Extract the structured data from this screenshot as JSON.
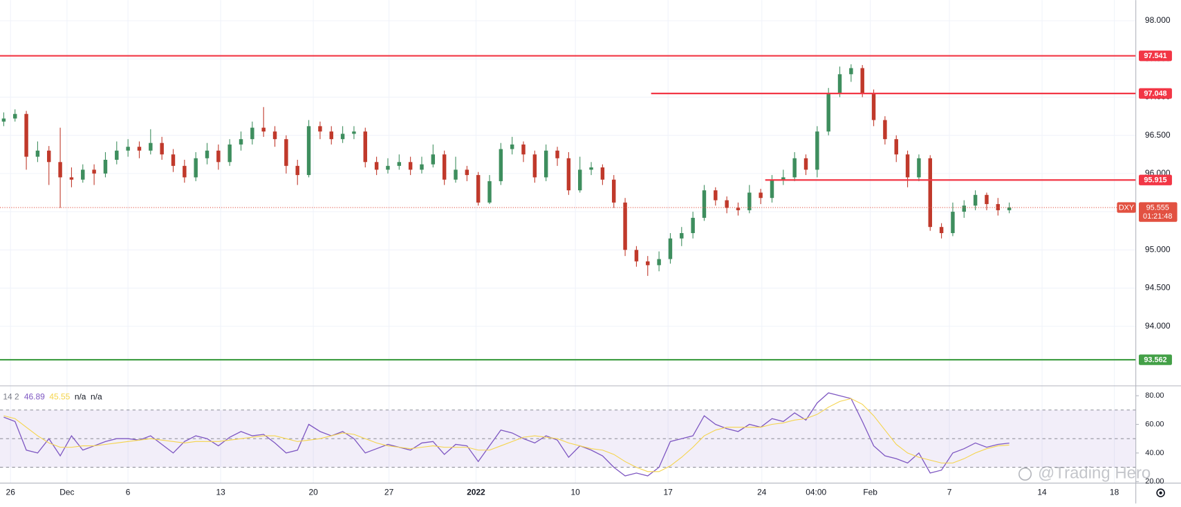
{
  "chart_data": [
    {
      "type": "candlestick",
      "symbol": "DXY",
      "up_color": "#3e8e5e",
      "down_color": "#c0392b",
      "grid": true,
      "xlim": [
        -0.33,
        100.2
      ],
      "ylim": [
        93.22,
        98.27
      ],
      "xticks": [
        {
          "value": 0.6,
          "label": "26"
        },
        {
          "value": 5.6,
          "label": "Dec"
        },
        {
          "value": 11,
          "label": "6"
        },
        {
          "value": 19.2,
          "label": "13"
        },
        {
          "value": 27.4,
          "label": "20"
        },
        {
          "value": 34.1,
          "label": "27"
        },
        {
          "value": 41.8,
          "label": "2022"
        },
        {
          "value": 50.6,
          "label": "10"
        },
        {
          "value": 58.8,
          "label": "17"
        },
        {
          "value": 67.1,
          "label": "24"
        },
        {
          "value": 71.9,
          "label": "04:00"
        },
        {
          "value": 76.7,
          "label": "Feb"
        },
        {
          "value": 83.7,
          "label": "7"
        },
        {
          "value": 91.9,
          "label": "14"
        },
        {
          "value": 98.3,
          "label": "18"
        }
      ],
      "yticks": [
        {
          "value": 94,
          "label": "94.000"
        },
        {
          "value": 94.5,
          "label": "94.500"
        },
        {
          "value": 95,
          "label": "95.000"
        },
        {
          "value": 95.5,
          "label": "95.500"
        },
        {
          "value": 96,
          "label": "96.000"
        },
        {
          "value": 96.5,
          "label": "96.500"
        },
        {
          "value": 97,
          "label": "97.000"
        },
        {
          "value": 97.5,
          "label": "97.500"
        },
        {
          "value": 98,
          "label": "98.000"
        }
      ],
      "levels": [
        {
          "value": 97.541,
          "label": "97.541",
          "color": "#f23645"
        },
        {
          "value": 97.048,
          "label": "97.048",
          "color": "#f23645",
          "start": 57.3
        },
        {
          "value": 95.915,
          "label": "95.915",
          "color": "#f23645",
          "start": 67.4
        },
        {
          "value": 93.562,
          "label": "93.562",
          "color": "#43a047"
        }
      ],
      "last": {
        "value": 95.555,
        "label": "95.555",
        "countdown": "01:21:48",
        "color": "#e25141"
      },
      "open": [
        96.68,
        96.72,
        96.78,
        96.22,
        96.3,
        96.15,
        95.95,
        95.92,
        96.05,
        96.0,
        96.18,
        96.3,
        96.35,
        96.3,
        96.4,
        96.25,
        96.1,
        95.95,
        96.2,
        96.3,
        96.15,
        96.38,
        96.45,
        96.6,
        96.55,
        96.45,
        96.1,
        95.98,
        96.62,
        96.55,
        96.45,
        96.52,
        96.55,
        96.15,
        96.05,
        96.1,
        96.15,
        96.05,
        96.12,
        96.25,
        95.92,
        96.05,
        95.98,
        95.62,
        95.9,
        96.32,
        96.38,
        96.25,
        95.95,
        96.3,
        96.2,
        95.78,
        96.05,
        96.08,
        95.92,
        95.62,
        95.0,
        94.85,
        94.8,
        94.88,
        95.15,
        95.22,
        95.42,
        95.78,
        95.65,
        95.55,
        95.52,
        95.75,
        95.68,
        95.92,
        95.95,
        96.2,
        96.05,
        96.55,
        97.05,
        97.3,
        97.38,
        97.05,
        96.7,
        96.45,
        96.25,
        95.95,
        96.2,
        95.3,
        95.22,
        95.5,
        95.58,
        95.72,
        95.6,
        95.52
      ],
      "high": [
        96.8,
        96.84,
        96.82,
        96.42,
        96.36,
        96.6,
        96.08,
        96.12,
        96.12,
        96.28,
        96.42,
        96.45,
        96.42,
        96.58,
        96.48,
        96.32,
        96.18,
        96.28,
        96.4,
        96.38,
        96.45,
        96.55,
        96.68,
        96.87,
        96.62,
        96.5,
        96.18,
        96.7,
        96.68,
        96.62,
        96.62,
        96.62,
        96.6,
        96.22,
        96.2,
        96.25,
        96.22,
        96.22,
        96.38,
        96.3,
        96.22,
        96.1,
        96.02,
        95.98,
        96.4,
        96.48,
        96.42,
        96.3,
        96.38,
        96.35,
        96.28,
        96.22,
        96.15,
        96.12,
        95.98,
        95.68,
        95.05,
        94.92,
        94.98,
        95.22,
        95.3,
        95.5,
        95.85,
        95.82,
        95.7,
        95.62,
        95.85,
        95.8,
        95.98,
        96.05,
        96.28,
        96.25,
        96.62,
        97.12,
        97.4,
        97.43,
        97.42,
        97.1,
        96.75,
        96.5,
        96.3,
        96.25,
        96.24,
        95.35,
        95.62,
        95.65,
        95.78,
        95.75,
        95.68,
        95.62
      ],
      "low": [
        96.62,
        96.68,
        96.05,
        96.15,
        95.85,
        95.55,
        95.82,
        95.88,
        95.85,
        95.95,
        96.12,
        96.22,
        96.2,
        96.25,
        96.18,
        96.02,
        95.88,
        95.9,
        96.12,
        96.05,
        96.1,
        96.3,
        96.38,
        96.48,
        96.35,
        96.0,
        95.85,
        95.95,
        96.45,
        96.38,
        96.4,
        96.45,
        96.08,
        95.98,
        96.0,
        96.05,
        95.98,
        96.0,
        96.08,
        95.85,
        95.88,
        95.9,
        95.58,
        95.6,
        95.85,
        96.25,
        96.15,
        95.88,
        95.9,
        96.1,
        95.72,
        95.75,
        95.98,
        95.85,
        95.55,
        94.92,
        94.78,
        94.66,
        94.72,
        94.82,
        95.05,
        95.15,
        95.38,
        95.58,
        95.48,
        95.45,
        95.48,
        95.6,
        95.62,
        95.85,
        95.9,
        95.98,
        95.95,
        96.5,
        97.0,
        97.2,
        97.0,
        96.62,
        96.38,
        96.15,
        95.82,
        95.9,
        95.25,
        95.15,
        95.18,
        95.42,
        95.52,
        95.52,
        95.45,
        95.48
      ],
      "close": [
        96.72,
        96.78,
        96.22,
        96.3,
        96.15,
        95.95,
        95.92,
        96.05,
        96.0,
        96.18,
        96.3,
        96.35,
        96.3,
        96.4,
        96.25,
        96.1,
        95.95,
        96.2,
        96.3,
        96.15,
        96.38,
        96.45,
        96.6,
        96.55,
        96.45,
        96.1,
        95.98,
        96.62,
        96.55,
        96.45,
        96.52,
        96.55,
        96.15,
        96.05,
        96.1,
        96.15,
        96.05,
        96.12,
        96.25,
        95.92,
        96.05,
        95.98,
        95.62,
        95.9,
        96.32,
        96.38,
        96.25,
        95.95,
        96.3,
        96.2,
        95.78,
        96.05,
        96.08,
        95.92,
        95.62,
        95.0,
        94.85,
        94.8,
        94.88,
        95.15,
        95.22,
        95.42,
        95.78,
        95.65,
        95.55,
        95.52,
        95.75,
        95.68,
        95.92,
        95.95,
        96.2,
        96.05,
        96.55,
        97.05,
        97.3,
        97.38,
        97.05,
        96.7,
        96.45,
        96.25,
        95.95,
        96.2,
        95.3,
        95.22,
        95.5,
        95.58,
        95.72,
        95.6,
        95.52,
        95.555
      ]
    },
    {
      "type": "line",
      "header": {
        "params": "14 2",
        "values": [
          "46.89",
          "45.55",
          "n/a",
          "n/a"
        ]
      },
      "ylim": [
        19.5,
        85.3
      ],
      "yticks": [
        {
          "value": 20,
          "label": "20.00"
        },
        {
          "value": 40,
          "label": "40.00"
        },
        {
          "value": 60,
          "label": "60.00"
        },
        {
          "value": 80,
          "label": "80.00"
        }
      ],
      "levels": [
        70,
        50,
        30
      ],
      "band": [
        70,
        30
      ],
      "band_color": "#7e57c2",
      "series": [
        {
          "color": "#7e57c2",
          "values": [
            65,
            62,
            42,
            40,
            50,
            38,
            52,
            42,
            45,
            48,
            50,
            50,
            49,
            52,
            46,
            40,
            48,
            52,
            50,
            45,
            51,
            55,
            52,
            53,
            47,
            40,
            42,
            60,
            55,
            52,
            55,
            50,
            40,
            43,
            46,
            44,
            42,
            47,
            48,
            39,
            46,
            45,
            34,
            45,
            56,
            54,
            50,
            47,
            52,
            49,
            37,
            45,
            42,
            38,
            30,
            24,
            26,
            24,
            30,
            48,
            50,
            52,
            66,
            60,
            57,
            55,
            60,
            58,
            64,
            62,
            68,
            63,
            75,
            82,
            80,
            78,
            62,
            45,
            38,
            36,
            33,
            40,
            26,
            28,
            40,
            43,
            47,
            44,
            46,
            46.89
          ]
        },
        {
          "color": "#f5d44a",
          "values": [
            66,
            64,
            58,
            52,
            47,
            44,
            44,
            45,
            45,
            46,
            47,
            48,
            49,
            50,
            49,
            48,
            47,
            48,
            48,
            48,
            49,
            50,
            51,
            52,
            52,
            50,
            48,
            49,
            50,
            52,
            54,
            53,
            50,
            47,
            45,
            44,
            43,
            44,
            45,
            44,
            44,
            44,
            42,
            42,
            45,
            48,
            51,
            52,
            51,
            50,
            47,
            45,
            43,
            42,
            39,
            34,
            30,
            27,
            27,
            31,
            37,
            44,
            52,
            56,
            58,
            58,
            58,
            58,
            60,
            61,
            63,
            64,
            67,
            72,
            76,
            78,
            74,
            66,
            56,
            46,
            40,
            37,
            35,
            33,
            33,
            36,
            40,
            43,
            45,
            45.55
          ]
        }
      ]
    }
  ],
  "watermark": "@Trading Hero"
}
